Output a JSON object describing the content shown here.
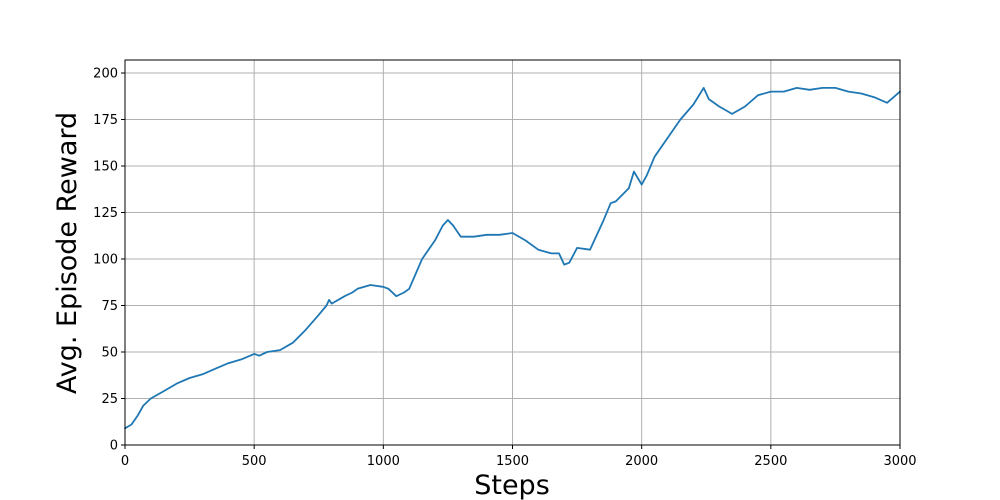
{
  "chart_data": {
    "type": "line",
    "title": "",
    "xlabel": "Steps",
    "ylabel": "Avg. Episode Reward",
    "xlim": [
      0,
      3000
    ],
    "ylim": [
      0,
      207
    ],
    "xticks": [
      0,
      500,
      1000,
      1500,
      2000,
      2500,
      3000
    ],
    "yticks": [
      0,
      25,
      50,
      75,
      100,
      125,
      150,
      175,
      200
    ],
    "grid": true,
    "legend": "none",
    "colors": {
      "line": "#1f77b4",
      "grid": "#b0b0b0",
      "axis": "#000000",
      "background": "#ffffff"
    },
    "series": [
      {
        "x": [
          0,
          25,
          50,
          70,
          100,
          150,
          200,
          250,
          300,
          350,
          400,
          450,
          500,
          520,
          550,
          600,
          650,
          700,
          750,
          780,
          790,
          800,
          850,
          880,
          900,
          950,
          1000,
          1020,
          1050,
          1080,
          1100,
          1150,
          1200,
          1230,
          1250,
          1270,
          1300,
          1350,
          1400,
          1450,
          1500,
          1550,
          1600,
          1650,
          1680,
          1700,
          1720,
          1750,
          1800,
          1850,
          1880,
          1900,
          1950,
          1970,
          2000,
          2020,
          2050,
          2100,
          2150,
          2200,
          2240,
          2260,
          2300,
          2350,
          2400,
          2450,
          2500,
          2550,
          2600,
          2650,
          2700,
          2750,
          2800,
          2850,
          2900,
          2950,
          3000
        ],
        "y": [
          9,
          11,
          16,
          21,
          25,
          29,
          33,
          36,
          38,
          41,
          44,
          46,
          49,
          48,
          50,
          51,
          55,
          62,
          70,
          75,
          78,
          76,
          80,
          82,
          84,
          86,
          85,
          84,
          80,
          82,
          84,
          100,
          110,
          118,
          121,
          118,
          112,
          112,
          113,
          113,
          114,
          110,
          105,
          103,
          103,
          97,
          98,
          106,
          105,
          120,
          130,
          131,
          138,
          147,
          140,
          145,
          155,
          165,
          175,
          183,
          192,
          186,
          182,
          178,
          182,
          188,
          190,
          190,
          192,
          191,
          192,
          192,
          190,
          189,
          187,
          184,
          190
        ]
      }
    ]
  }
}
